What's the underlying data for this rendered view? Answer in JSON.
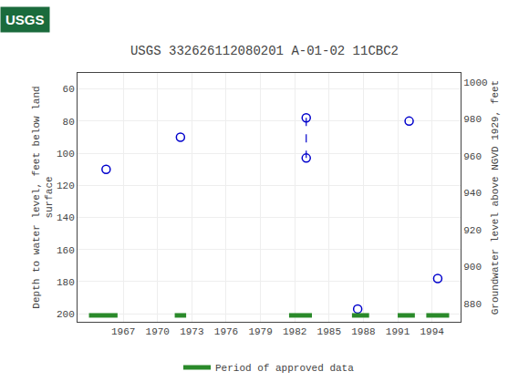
{
  "chart_data": {
    "type": "scatter",
    "title": "USGS 332626112080201 A-01-02 11CBC2",
    "annotations": [
      {
        "text": "USGS",
        "color": "#1a6b3c"
      }
    ],
    "ylabel": "Depth to water level, feet below land\nsurface",
    "y2label": "Groundwater level above NGVD 1929, feet",
    "xlim": [
      1963.0,
      1996.5
    ],
    "xticks": [
      1967,
      1970,
      1973,
      1976,
      1979,
      1982,
      1985,
      1988,
      1991,
      1994
    ],
    "ylim": [
      205,
      50
    ],
    "yticks": [
      60,
      80,
      100,
      120,
      140,
      160,
      180,
      200
    ],
    "y2lim": [
      870,
      1005
    ],
    "y2ticks": [
      880,
      900,
      920,
      940,
      960,
      980,
      1000
    ],
    "grid": true,
    "legend": "bottom",
    "series": [
      {
        "type": "scatter",
        "marker": "open circle",
        "color": "#0000cc",
        "x": [
          1965.5,
          1972.0,
          1983.0,
          1983.0,
          1987.5,
          1992.0,
          1994.5
        ],
        "values": [
          110,
          90,
          78,
          103,
          197,
          80,
          178
        ]
      },
      {
        "type": "line",
        "line_style": "dashed",
        "color": "#0000cc",
        "x": [
          1983.0,
          1983.0
        ],
        "values": [
          78,
          103
        ]
      },
      {
        "type": "bar",
        "orientation": "horizontal",
        "name": "Period of approved data",
        "color": "#2a8a2a",
        "y": 201,
        "periods": [
          [
            1964.0,
            1966.5
          ],
          [
            1971.5,
            1972.5
          ],
          [
            1981.5,
            1983.5
          ],
          [
            1987.0,
            1988.5
          ],
          [
            1991.0,
            1992.5
          ],
          [
            1993.5,
            1995.5
          ]
        ]
      }
    ]
  }
}
